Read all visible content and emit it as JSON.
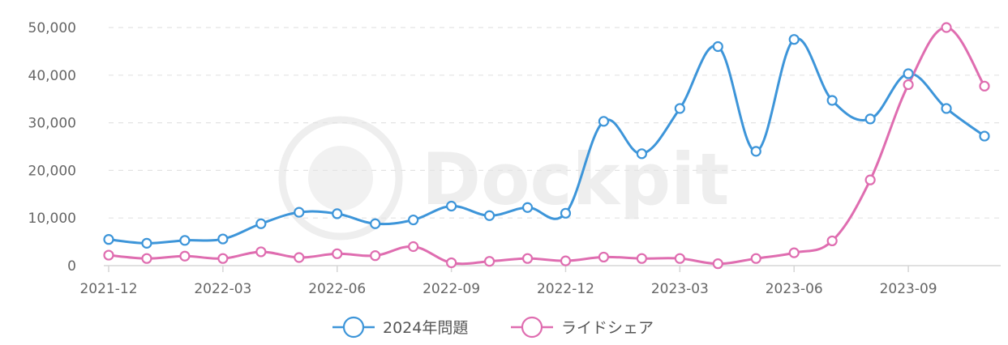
{
  "chart_data": {
    "type": "line",
    "x": [
      "2021-12",
      "2022-01",
      "2022-02",
      "2022-03",
      "2022-04",
      "2022-05",
      "2022-06",
      "2022-07",
      "2022-08",
      "2022-09",
      "2022-10",
      "2022-11",
      "2022-12",
      "2023-01",
      "2023-02",
      "2023-03",
      "2023-04",
      "2023-05",
      "2023-06",
      "2023-07",
      "2023-08",
      "2023-09",
      "2023-10",
      "2023-11"
    ],
    "x_tick_labels": [
      "2021-12",
      "2022-03",
      "2022-06",
      "2022-09",
      "2022-12",
      "2023-03",
      "2023-06",
      "2023-09"
    ],
    "series": [
      {
        "name": "2024年問題",
        "color": "#3d95d9",
        "values": [
          5500,
          4700,
          5300,
          5600,
          8800,
          11200,
          10900,
          8800,
          9600,
          12500,
          10500,
          12200,
          11000,
          30300,
          23500,
          33000,
          46000,
          24000,
          47500,
          34700,
          30800,
          40300,
          33000,
          27200
        ]
      },
      {
        "name": "ライドシェア",
        "color": "#df6db0",
        "values": [
          2200,
          1500,
          2000,
          1500,
          2900,
          1700,
          2500,
          2100,
          4000,
          600,
          900,
          1500,
          1000,
          1800,
          1500,
          1500,
          400,
          1500,
          2700,
          5200,
          18000,
          38000,
          50000,
          37700
        ]
      }
    ],
    "y_ticks": [
      "0",
      "10,000",
      "20,000",
      "30,000",
      "40,000",
      "50,000"
    ],
    "ylim": [
      0,
      50000
    ],
    "grid": true,
    "legend_position": "bottom-center",
    "watermark": "Dockpit"
  }
}
